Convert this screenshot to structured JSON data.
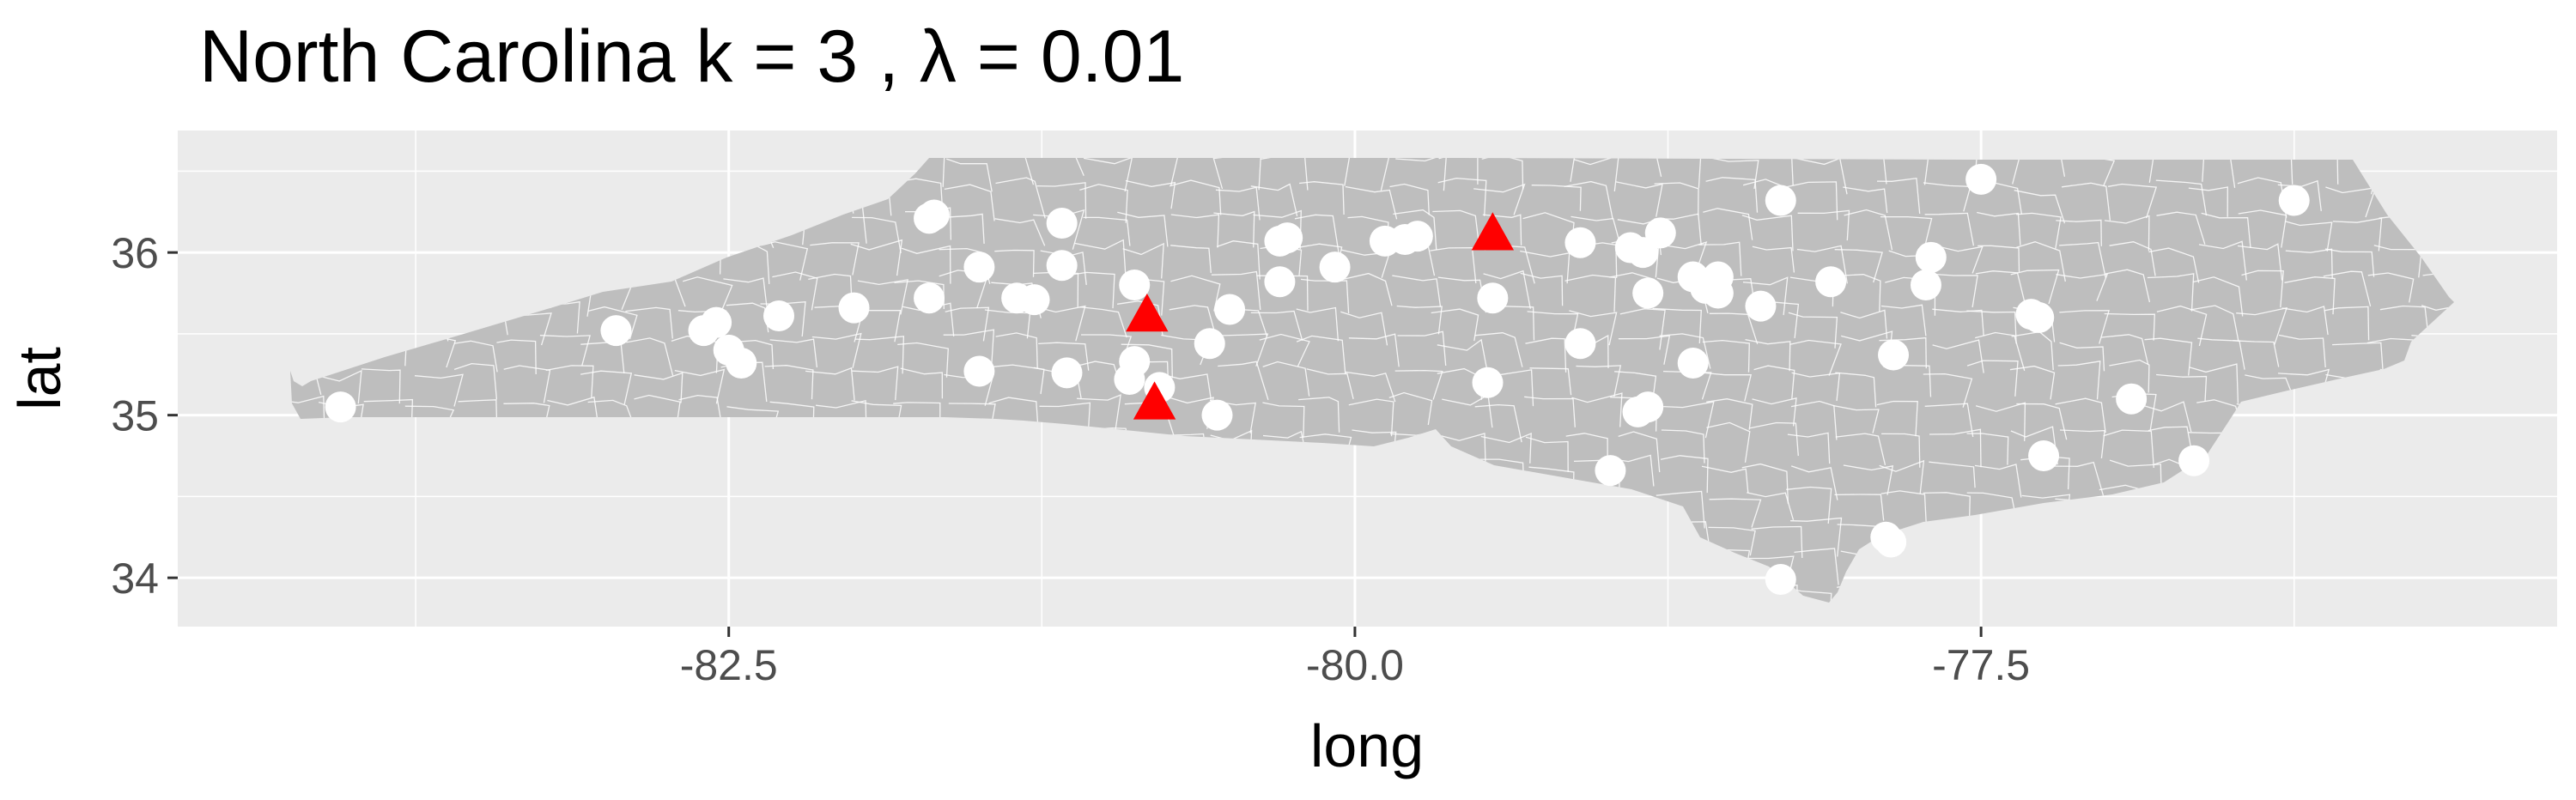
{
  "chart_data": {
    "type": "scatter",
    "title": "North Carolina  k =  3 ,  λ  =  0.01",
    "xlabel": "long",
    "ylabel": "lat",
    "xlim": [
      -84.7,
      -75.2
    ],
    "ylim": [
      33.7,
      36.75
    ],
    "x_ticks": [
      {
        "value": -82.5,
        "label": "-82.5"
      },
      {
        "value": -80.0,
        "label": "-80.0"
      },
      {
        "value": -77.5,
        "label": "-77.5"
      }
    ],
    "y_ticks": [
      {
        "value": 34,
        "label": "34"
      },
      {
        "value": 35,
        "label": "35"
      },
      {
        "value": 36,
        "label": "36"
      }
    ],
    "grid": true,
    "legend": "none",
    "colors": {
      "panel": "#ebebeb",
      "grid": "#ffffff",
      "state_fill": "#bebebe",
      "county_lines": "#ffffff",
      "points": "#ffffff",
      "centers": "#ff0000"
    },
    "background_layer": "North Carolina county polygons",
    "series": [
      {
        "marker": "circle",
        "color": "#ffffff",
        "points": [
          {
            "x": -84.05,
            "y": 35.05
          },
          {
            "x": -82.95,
            "y": 35.52
          },
          {
            "x": -82.6,
            "y": 35.52
          },
          {
            "x": -82.55,
            "y": 35.57
          },
          {
            "x": -82.5,
            "y": 35.4
          },
          {
            "x": -82.45,
            "y": 35.32
          },
          {
            "x": -82.3,
            "y": 35.61
          },
          {
            "x": -82.0,
            "y": 35.66
          },
          {
            "x": -81.7,
            "y": 36.21
          },
          {
            "x": -81.68,
            "y": 36.23
          },
          {
            "x": -81.7,
            "y": 35.72
          },
          {
            "x": -81.5,
            "y": 35.91
          },
          {
            "x": -81.5,
            "y": 35.27
          },
          {
            "x": -81.35,
            "y": 35.72
          },
          {
            "x": -81.28,
            "y": 35.71
          },
          {
            "x": -81.17,
            "y": 36.18
          },
          {
            "x": -81.17,
            "y": 35.92
          },
          {
            "x": -81.15,
            "y": 35.26
          },
          {
            "x": -80.88,
            "y": 35.8
          },
          {
            "x": -80.88,
            "y": 35.33
          },
          {
            "x": -80.9,
            "y": 35.22
          },
          {
            "x": -80.78,
            "y": 35.17
          },
          {
            "x": -80.58,
            "y": 35.44
          },
          {
            "x": -80.5,
            "y": 35.65
          },
          {
            "x": -80.55,
            "y": 35.0
          },
          {
            "x": -80.3,
            "y": 36.07
          },
          {
            "x": -80.27,
            "y": 36.09
          },
          {
            "x": -80.3,
            "y": 35.82
          },
          {
            "x": -80.08,
            "y": 35.91
          },
          {
            "x": -79.88,
            "y": 36.07
          },
          {
            "x": -79.8,
            "y": 36.08
          },
          {
            "x": -79.75,
            "y": 36.1
          },
          {
            "x": -79.45,
            "y": 35.72
          },
          {
            "x": -79.47,
            "y": 35.2
          },
          {
            "x": -79.1,
            "y": 36.06
          },
          {
            "x": -79.1,
            "y": 35.44
          },
          {
            "x": -78.9,
            "y": 36.03
          },
          {
            "x": -78.85,
            "y": 36.0
          },
          {
            "x": -78.78,
            "y": 36.12
          },
          {
            "x": -78.83,
            "y": 35.75
          },
          {
            "x": -78.98,
            "y": 34.66
          },
          {
            "x": -78.87,
            "y": 35.02
          },
          {
            "x": -78.83,
            "y": 35.05
          },
          {
            "x": -78.65,
            "y": 35.85
          },
          {
            "x": -78.6,
            "y": 35.78
          },
          {
            "x": -78.55,
            "y": 35.75
          },
          {
            "x": -78.55,
            "y": 35.85
          },
          {
            "x": -78.65,
            "y": 35.32
          },
          {
            "x": -78.38,
            "y": 35.67
          },
          {
            "x": -78.3,
            "y": 36.32
          },
          {
            "x": -78.1,
            "y": 35.82
          },
          {
            "x": -78.3,
            "y": 33.99
          },
          {
            "x": -77.85,
            "y": 35.37
          },
          {
            "x": -77.7,
            "y": 35.97
          },
          {
            "x": -77.72,
            "y": 35.8
          },
          {
            "x": -77.88,
            "y": 34.25
          },
          {
            "x": -77.86,
            "y": 34.22
          },
          {
            "x": -77.5,
            "y": 36.45
          },
          {
            "x": -77.3,
            "y": 35.62
          },
          {
            "x": -77.27,
            "y": 35.6
          },
          {
            "x": -77.25,
            "y": 34.75
          },
          {
            "x": -76.9,
            "y": 35.1
          },
          {
            "x": -76.65,
            "y": 34.72
          },
          {
            "x": -76.25,
            "y": 36.32
          }
        ]
      },
      {
        "marker": "triangle",
        "color": "#ff0000",
        "points": [
          {
            "x": -80.83,
            "y": 35.61
          },
          {
            "x": -80.8,
            "y": 35.07
          },
          {
            "x": -79.45,
            "y": 36.11
          }
        ]
      }
    ]
  }
}
